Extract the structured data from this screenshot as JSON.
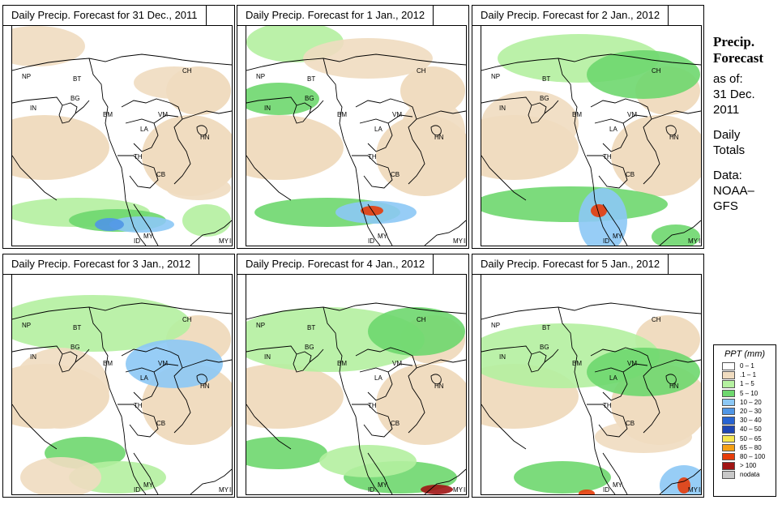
{
  "panels": [
    {
      "title": "Daily Precip. Forecast for  31 Dec., 2011"
    },
    {
      "title": "Daily Precip. Forecast for  1 Jan., 2012"
    },
    {
      "title": "Daily Precip. Forecast for  2 Jan., 2012"
    },
    {
      "title": "Daily Precip. Forecast for  3 Jan., 2012"
    },
    {
      "title": "Daily Precip. Forecast for  4 Jan., 2012"
    },
    {
      "title": "Daily Precip. Forecast for  5 Jan., 2012"
    }
  ],
  "map_labels": [
    "NP",
    "BT",
    "BG",
    "IN",
    "BM",
    "CH",
    "VM",
    "LA",
    "HN",
    "TH",
    "CB",
    "MY",
    "ID",
    "MY",
    "ID"
  ],
  "side": {
    "heading_line1": "Precip.",
    "heading_line2": "Forecast",
    "asof": "as of:",
    "date_line1": "31 Dec.",
    "date_line2": "2011",
    "daily_line1": "Daily",
    "daily_line2": "Totals",
    "data_line1": "Data:",
    "data_line2": "NOAA–",
    "data_line3": "GFS"
  },
  "legend": {
    "title": "PPT (mm)",
    "items": [
      {
        "label": "0 – 1",
        "color": "#ffffff"
      },
      {
        "label": ".1 – 1",
        "color": "#f0dcc0"
      },
      {
        "label": "1 – 5",
        "color": "#b4f0a0"
      },
      {
        "label": "5 – 10",
        "color": "#6ed76e"
      },
      {
        "label": "10 – 20",
        "color": "#8cc8f5"
      },
      {
        "label": "20 – 30",
        "color": "#5096e6"
      },
      {
        "label": "30 – 40",
        "color": "#2864d2"
      },
      {
        "label": "40 – 50",
        "color": "#1e46b4"
      },
      {
        "label": "50 – 65",
        "color": "#f5e650"
      },
      {
        "label": "65 – 80",
        "color": "#f5a014"
      },
      {
        "label": "80 – 100",
        "color": "#e63c0a"
      },
      {
        "label": "> 100",
        "color": "#a01414"
      },
      {
        "label": "nodata",
        "color": "#c8c8c8"
      }
    ]
  }
}
